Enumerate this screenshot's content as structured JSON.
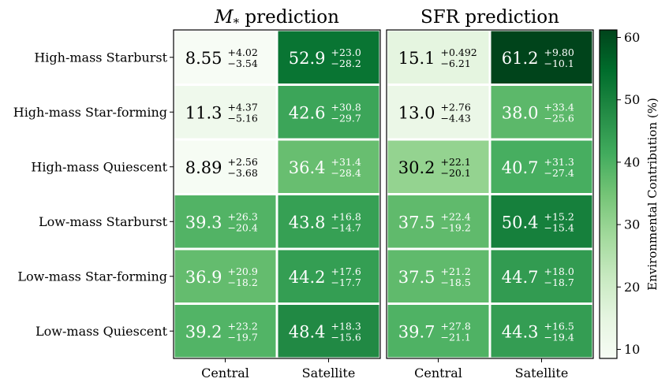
{
  "chart_data": {
    "type": "heatmap",
    "rows": [
      "High-mass Starburst",
      "High-mass Star-forming",
      "High-mass Quiescent",
      "Low-mass Starburst",
      "Low-mass Star-forming",
      "Low-mass Quiescent"
    ],
    "columns": [
      "Central",
      "Satellite"
    ],
    "panels": [
      {
        "title_main": "M",
        "title_sub": "*",
        "title_rest": " prediction",
        "cells": [
          [
            {
              "value": 8.55,
              "label": "8.55",
              "plus": "+4.02",
              "minus": "−3.54"
            },
            {
              "value": 52.9,
              "label": "52.9",
              "plus": "+23.0",
              "minus": "−28.2"
            }
          ],
          [
            {
              "value": 11.3,
              "label": "11.3",
              "plus": "+4.37",
              "minus": "−5.16"
            },
            {
              "value": 42.6,
              "label": "42.6",
              "plus": "+30.8",
              "minus": "−29.7"
            }
          ],
          [
            {
              "value": 8.89,
              "label": "8.89",
              "plus": "+2.56",
              "minus": "−3.68"
            },
            {
              "value": 36.4,
              "label": "36.4",
              "plus": "+31.4",
              "minus": "−28.4"
            }
          ],
          [
            {
              "value": 39.3,
              "label": "39.3",
              "plus": "+26.3",
              "minus": "−20.4"
            },
            {
              "value": 43.8,
              "label": "43.8",
              "plus": "+16.8",
              "minus": "−14.7"
            }
          ],
          [
            {
              "value": 36.9,
              "label": "36.9",
              "plus": "+20.9",
              "minus": "−18.2"
            },
            {
              "value": 44.2,
              "label": "44.2",
              "plus": "+17.6",
              "minus": "−17.7"
            }
          ],
          [
            {
              "value": 39.2,
              "label": "39.2",
              "plus": "+23.2",
              "minus": "−19.7"
            },
            {
              "value": 48.4,
              "label": "48.4",
              "plus": "+18.3",
              "minus": "−15.6"
            }
          ]
        ]
      },
      {
        "title_main": "SFR prediction",
        "title_sub": "",
        "title_rest": "",
        "cells": [
          [
            {
              "value": 15.1,
              "label": "15.1",
              "plus": "+0.492",
              "minus": "−6.21"
            },
            {
              "value": 61.2,
              "label": "61.2",
              "plus": "+9.80",
              "minus": "−10.1"
            }
          ],
          [
            {
              "value": 13.0,
              "label": "13.0",
              "plus": "+2.76",
              "minus": "−4.43"
            },
            {
              "value": 38.0,
              "label": "38.0",
              "plus": "+33.4",
              "minus": "−25.6"
            }
          ],
          [
            {
              "value": 30.2,
              "label": "30.2",
              "plus": "+22.1",
              "minus": "−20.1"
            },
            {
              "value": 40.7,
              "label": "40.7",
              "plus": "+31.3",
              "minus": "−27.4"
            }
          ],
          [
            {
              "value": 37.5,
              "label": "37.5",
              "plus": "+22.4",
              "minus": "−19.2"
            },
            {
              "value": 50.4,
              "label": "50.4",
              "plus": "+15.2",
              "minus": "−15.4"
            }
          ],
          [
            {
              "value": 37.5,
              "label": "37.5",
              "plus": "+21.2",
              "minus": "−18.5"
            },
            {
              "value": 44.7,
              "label": "44.7",
              "plus": "+18.0",
              "minus": "−18.7"
            }
          ],
          [
            {
              "value": 39.7,
              "label": "39.7",
              "plus": "+27.8",
              "minus": "−21.1"
            },
            {
              "value": 44.3,
              "label": "44.3",
              "plus": "+16.5",
              "minus": "−19.4"
            }
          ]
        ]
      }
    ],
    "colorbar": {
      "label": "Environmental Contribution (%)",
      "range": [
        8.55,
        61.2
      ],
      "ticks": [
        10,
        20,
        30,
        40,
        50,
        60
      ],
      "tick_labels": [
        "10",
        "20",
        "30",
        "40",
        "50",
        "60"
      ],
      "colormap": "Greens"
    },
    "grid": false
  }
}
